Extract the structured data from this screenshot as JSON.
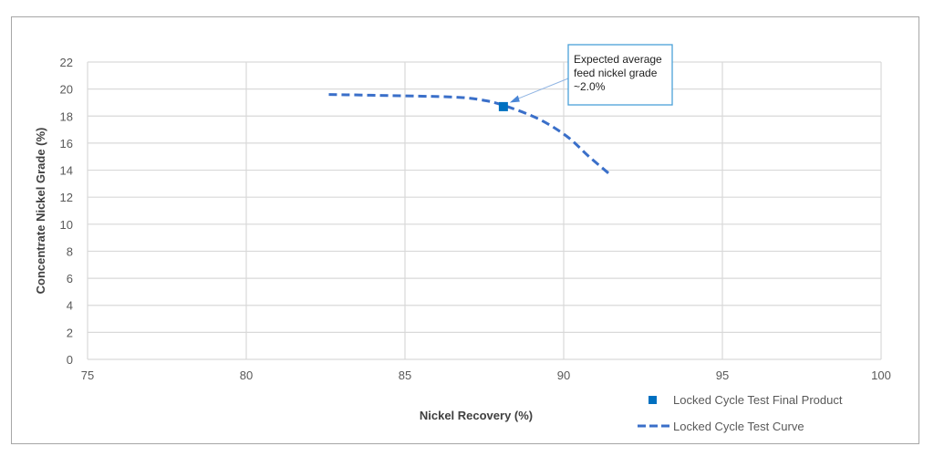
{
  "chart_data": {
    "type": "scatter",
    "title": "",
    "xlabel": "Nickel Recovery (%)",
    "ylabel": "Concentrate Nickel Grade (%)",
    "xlim": [
      75,
      100
    ],
    "ylim": [
      0,
      22
    ],
    "xticks": [
      75,
      80,
      85,
      90,
      95,
      100
    ],
    "yticks": [
      0,
      2,
      4,
      6,
      8,
      10,
      12,
      14,
      16,
      18,
      20,
      22
    ],
    "grid": true,
    "legend_position": "bottom-right",
    "series": [
      {
        "name": "Locked Cycle Test Final Product",
        "style": "marker-square",
        "color": "#0070c0",
        "points": [
          [
            88.1,
            18.7
          ]
        ]
      },
      {
        "name": "Locked Cycle Test Curve",
        "style": "dashed-line",
        "color": "#3a6fc9",
        "points": [
          [
            82.6,
            19.6
          ],
          [
            84.9,
            19.5
          ],
          [
            86.6,
            19.4
          ],
          [
            87.4,
            19.2
          ],
          [
            88.1,
            18.8
          ],
          [
            89.2,
            17.8
          ],
          [
            90.1,
            16.5
          ],
          [
            90.8,
            15.0
          ],
          [
            91.5,
            13.6
          ]
        ]
      }
    ],
    "annotation": {
      "lines": [
        "Expected average",
        "feed nickel grade",
        "~2.0%"
      ],
      "target": [
        88.3,
        19.0
      ]
    }
  }
}
